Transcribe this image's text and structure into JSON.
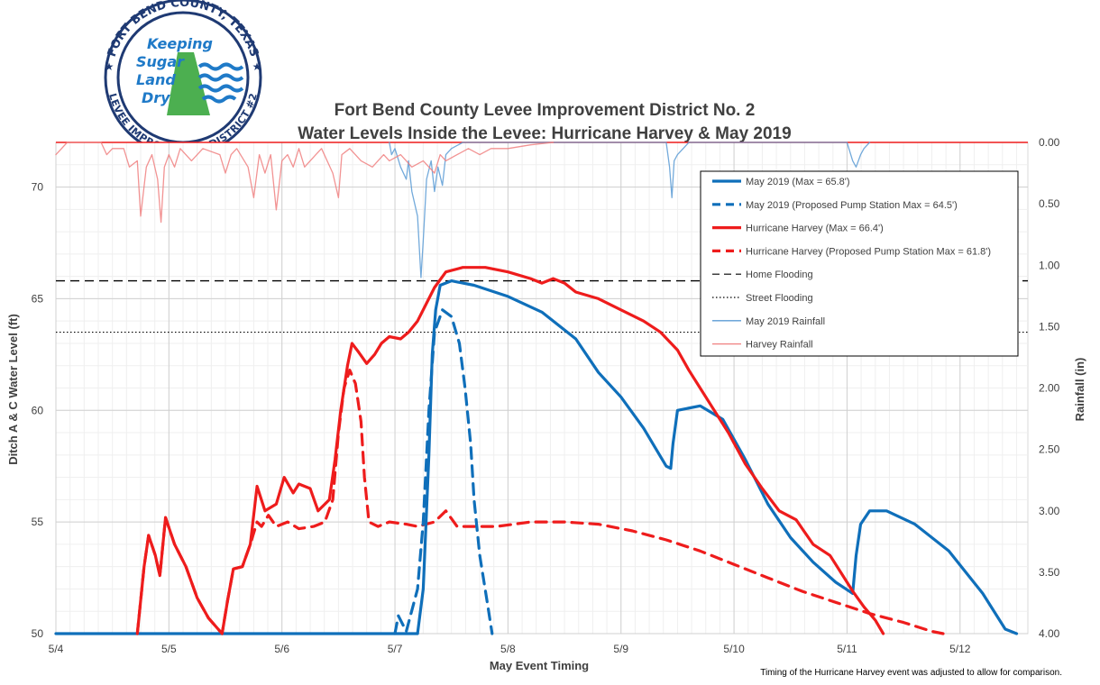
{
  "logo": {
    "ring_text_top": "FORT BEND COUNTY, TEXAS",
    "ring_text_bottom": "LEVEE IMPROVEMENT DISTRICT #2",
    "center_lines": [
      "Keeping",
      "Sugar",
      "Land",
      "Dry"
    ],
    "colors": {
      "ring": "#1f3a73",
      "text": "#1f7ac8",
      "hill": "#4caf50",
      "water": "#1f7ac8"
    }
  },
  "footnote": "Timing of the Hurricane Harvey event was adjusted to allow for comparison.",
  "chart_data": {
    "type": "line",
    "title": [
      "Fort Bend County Levee Improvement District No. 2",
      "Water Levels Inside the Levee: Hurricane Harvey & May 2019"
    ],
    "xlabel": "May Event Timing",
    "ylabel": "Ditch A & C Water Level (ft)",
    "y2label": "Rainfall (in)",
    "x_ticks": [
      "5/4",
      "5/5",
      "5/6",
      "5/7",
      "5/8",
      "5/9",
      "5/10",
      "5/11",
      "5/12"
    ],
    "xlim": [
      4.0,
      12.6
    ],
    "ylim": [
      50,
      72
    ],
    "y_ticks": [
      50,
      55,
      60,
      65,
      70
    ],
    "y2lim": [
      0,
      4
    ],
    "y2_inverted": true,
    "y2_ticks": [
      "0.00",
      "0.50",
      "1.00",
      "1.50",
      "2.00",
      "2.50",
      "3.00",
      "3.50",
      "4.00"
    ],
    "grid": true,
    "legend_position": "top-right",
    "reference_lines": [
      {
        "name": "Home Flooding",
        "y": 65.8,
        "style": "dashed",
        "color": "#000000"
      },
      {
        "name": "Street Flooding",
        "y": 63.5,
        "style": "dotted",
        "color": "#000000"
      }
    ],
    "series": [
      {
        "name": "May 2019 (Max = 65.8')",
        "color": "#0f6fba",
        "style": "solid",
        "axis": "y",
        "points": [
          [
            4.0,
            50
          ],
          [
            7.2,
            50
          ],
          [
            7.25,
            52
          ],
          [
            7.3,
            58
          ],
          [
            7.33,
            62.5
          ],
          [
            7.36,
            64.5
          ],
          [
            7.4,
            65.6
          ],
          [
            7.5,
            65.8
          ],
          [
            7.7,
            65.6
          ],
          [
            8.0,
            65.1
          ],
          [
            8.3,
            64.4
          ],
          [
            8.6,
            63.2
          ],
          [
            8.8,
            61.7
          ],
          [
            9.0,
            60.6
          ],
          [
            9.2,
            59.2
          ],
          [
            9.4,
            57.5
          ],
          [
            9.44,
            57.4
          ],
          [
            9.46,
            58.5
          ],
          [
            9.5,
            60.0
          ],
          [
            9.7,
            60.2
          ],
          [
            9.9,
            59.6
          ],
          [
            10.1,
            57.8
          ],
          [
            10.3,
            55.8
          ],
          [
            10.5,
            54.3
          ],
          [
            10.7,
            53.2
          ],
          [
            10.9,
            52.3
          ],
          [
            11.05,
            51.8
          ],
          [
            11.08,
            53.5
          ],
          [
            11.12,
            54.9
          ],
          [
            11.2,
            55.5
          ],
          [
            11.35,
            55.5
          ],
          [
            11.6,
            54.9
          ],
          [
            11.9,
            53.7
          ],
          [
            12.2,
            51.8
          ],
          [
            12.4,
            50.2
          ],
          [
            12.5,
            50
          ]
        ]
      },
      {
        "name": "May 2019 (Proposed Pump Station Max = 64.5')",
        "color": "#0f6fba",
        "style": "dashed",
        "axis": "y",
        "points": [
          [
            7.0,
            50
          ],
          [
            7.03,
            50.8
          ],
          [
            7.1,
            50.1
          ],
          [
            7.2,
            52
          ],
          [
            7.25,
            55
          ],
          [
            7.3,
            60
          ],
          [
            7.35,
            63.5
          ],
          [
            7.42,
            64.5
          ],
          [
            7.5,
            64.2
          ],
          [
            7.57,
            63
          ],
          [
            7.62,
            61
          ],
          [
            7.67,
            58.5
          ],
          [
            7.7,
            56
          ],
          [
            7.75,
            53.5
          ],
          [
            7.82,
            51.3
          ],
          [
            7.86,
            50
          ]
        ]
      },
      {
        "name": "Hurricane Harvey (Max = 66.4')",
        "color": "#ee1c1c",
        "style": "solid",
        "axis": "y",
        "points": [
          [
            4.72,
            50
          ],
          [
            4.78,
            53
          ],
          [
            4.82,
            54.4
          ],
          [
            4.88,
            53.5
          ],
          [
            4.92,
            52.6
          ],
          [
            4.97,
            55.2
          ],
          [
            5.05,
            54.0
          ],
          [
            5.15,
            53.0
          ],
          [
            5.25,
            51.6
          ],
          [
            5.35,
            50.7
          ],
          [
            5.47,
            50
          ],
          [
            5.52,
            51.5
          ],
          [
            5.57,
            52.9
          ],
          [
            5.65,
            53.0
          ],
          [
            5.72,
            54.0
          ],
          [
            5.78,
            56.6
          ],
          [
            5.85,
            55.5
          ],
          [
            5.95,
            55.8
          ],
          [
            6.02,
            57.0
          ],
          [
            6.1,
            56.3
          ],
          [
            6.15,
            56.7
          ],
          [
            6.25,
            56.5
          ],
          [
            6.32,
            55.5
          ],
          [
            6.42,
            56.0
          ],
          [
            6.47,
            57.8
          ],
          [
            6.52,
            60.0
          ],
          [
            6.58,
            62.0
          ],
          [
            6.62,
            63.0
          ],
          [
            6.68,
            62.6
          ],
          [
            6.75,
            62.1
          ],
          [
            6.82,
            62.5
          ],
          [
            6.88,
            63.0
          ],
          [
            6.95,
            63.3
          ],
          [
            7.05,
            63.2
          ],
          [
            7.12,
            63.5
          ],
          [
            7.2,
            64.0
          ],
          [
            7.28,
            64.8
          ],
          [
            7.35,
            65.5
          ],
          [
            7.45,
            66.2
          ],
          [
            7.6,
            66.4
          ],
          [
            7.8,
            66.4
          ],
          [
            8.0,
            66.2
          ],
          [
            8.2,
            65.9
          ],
          [
            8.3,
            65.7
          ],
          [
            8.4,
            65.9
          ],
          [
            8.5,
            65.7
          ],
          [
            8.6,
            65.3
          ],
          [
            8.8,
            65.0
          ],
          [
            9.0,
            64.5
          ],
          [
            9.2,
            64.0
          ],
          [
            9.35,
            63.5
          ],
          [
            9.5,
            62.7
          ],
          [
            9.6,
            61.8
          ],
          [
            9.7,
            61.0
          ],
          [
            9.8,
            60.2
          ],
          [
            9.95,
            59.0
          ],
          [
            10.1,
            57.6
          ],
          [
            10.25,
            56.5
          ],
          [
            10.4,
            55.5
          ],
          [
            10.55,
            55.1
          ],
          [
            10.7,
            54.0
          ],
          [
            10.85,
            53.5
          ],
          [
            10.95,
            52.7
          ],
          [
            11.05,
            51.9
          ],
          [
            11.15,
            51.2
          ],
          [
            11.25,
            50.6
          ],
          [
            11.32,
            50
          ]
        ]
      },
      {
        "name": "Hurricane Harvey (Proposed Pump Station Max = 61.8')",
        "color": "#ee1c1c",
        "style": "dashed",
        "axis": "y",
        "points": [
          [
            4.72,
            50
          ],
          [
            4.78,
            53
          ],
          [
            4.82,
            54.4
          ],
          [
            4.88,
            53.5
          ],
          [
            4.92,
            52.6
          ],
          [
            4.97,
            55.2
          ],
          [
            5.05,
            54.0
          ],
          [
            5.15,
            53.0
          ],
          [
            5.25,
            51.6
          ],
          [
            5.35,
            50.7
          ],
          [
            5.47,
            50
          ],
          [
            5.52,
            51.5
          ],
          [
            5.57,
            52.9
          ],
          [
            5.65,
            53.0
          ],
          [
            5.72,
            54.0
          ],
          [
            5.78,
            55.0
          ],
          [
            5.82,
            54.8
          ],
          [
            5.88,
            55.3
          ],
          [
            5.95,
            54.8
          ],
          [
            6.05,
            55.0
          ],
          [
            6.15,
            54.7
          ],
          [
            6.28,
            54.8
          ],
          [
            6.38,
            55.0
          ],
          [
            6.45,
            56.0
          ],
          [
            6.5,
            59
          ],
          [
            6.55,
            61.0
          ],
          [
            6.6,
            61.8
          ],
          [
            6.65,
            61.2
          ],
          [
            6.7,
            59.5
          ],
          [
            6.73,
            57
          ],
          [
            6.77,
            55.0
          ],
          [
            6.85,
            54.8
          ],
          [
            6.95,
            55.0
          ],
          [
            7.1,
            54.9
          ],
          [
            7.2,
            54.8
          ],
          [
            7.35,
            55.0
          ],
          [
            7.45,
            55.5
          ],
          [
            7.55,
            54.8
          ],
          [
            7.7,
            54.8
          ],
          [
            7.9,
            54.8
          ],
          [
            8.2,
            55.0
          ],
          [
            8.5,
            55.0
          ],
          [
            8.8,
            54.9
          ],
          [
            9.1,
            54.6
          ],
          [
            9.4,
            54.2
          ],
          [
            9.7,
            53.7
          ],
          [
            10.0,
            53.1
          ],
          [
            10.3,
            52.5
          ],
          [
            10.6,
            51.9
          ],
          [
            10.9,
            51.4
          ],
          [
            11.2,
            50.9
          ],
          [
            11.5,
            50.5
          ],
          [
            11.75,
            50.1
          ],
          [
            11.85,
            50
          ]
        ]
      },
      {
        "name": "Home Flooding",
        "color": "#000000",
        "style": "dashed",
        "axis": "y",
        "points": [
          [
            4.0,
            65.8
          ],
          [
            12.6,
            65.8
          ]
        ]
      },
      {
        "name": "Street Flooding",
        "color": "#000000",
        "style": "dotted",
        "axis": "y",
        "points": [
          [
            4.0,
            63.5
          ],
          [
            12.6,
            63.5
          ]
        ]
      },
      {
        "name": "May 2019 Rainfall",
        "color": "#5b9bd5",
        "style": "solid-thin",
        "axis": "y2",
        "points": [
          [
            6.95,
            0
          ],
          [
            6.97,
            0.1
          ],
          [
            7.0,
            0.05
          ],
          [
            7.05,
            0.2
          ],
          [
            7.1,
            0.3
          ],
          [
            7.12,
            0.15
          ],
          [
            7.15,
            0.4
          ],
          [
            7.2,
            0.6
          ],
          [
            7.23,
            1.1
          ],
          [
            7.25,
            0.8
          ],
          [
            7.28,
            0.3
          ],
          [
            7.32,
            0.15
          ],
          [
            7.35,
            0.4
          ],
          [
            7.38,
            0.2
          ],
          [
            7.42,
            0.35
          ],
          [
            7.45,
            0.1
          ],
          [
            7.5,
            0.05
          ],
          [
            7.6,
            0
          ],
          [
            9.4,
            0
          ],
          [
            9.43,
            0.2
          ],
          [
            9.45,
            0.45
          ],
          [
            9.47,
            0.15
          ],
          [
            9.5,
            0.1
          ],
          [
            9.55,
            0.05
          ],
          [
            9.6,
            0
          ],
          [
            11.0,
            0
          ],
          [
            11.05,
            0.15
          ],
          [
            11.08,
            0.2
          ],
          [
            11.12,
            0.1
          ],
          [
            11.15,
            0.05
          ],
          [
            11.2,
            0
          ]
        ]
      },
      {
        "name": "Harvey Rainfall",
        "color": "#f08080",
        "style": "solid-thin",
        "axis": "y2",
        "points": [
          [
            4.0,
            0.1
          ],
          [
            4.05,
            0.05
          ],
          [
            4.1,
            0
          ],
          [
            4.4,
            0
          ],
          [
            4.45,
            0.1
          ],
          [
            4.5,
            0.05
          ],
          [
            4.6,
            0.05
          ],
          [
            4.65,
            0.2
          ],
          [
            4.72,
            0.15
          ],
          [
            4.75,
            0.6
          ],
          [
            4.8,
            0.2
          ],
          [
            4.85,
            0.1
          ],
          [
            4.9,
            0.3
          ],
          [
            4.93,
            0.65
          ],
          [
            4.96,
            0.2
          ],
          [
            5.0,
            0.1
          ],
          [
            5.05,
            0.2
          ],
          [
            5.1,
            0.05
          ],
          [
            5.2,
            0.15
          ],
          [
            5.3,
            0.05
          ],
          [
            5.45,
            0.1
          ],
          [
            5.5,
            0.25
          ],
          [
            5.55,
            0.1
          ],
          [
            5.6,
            0.05
          ],
          [
            5.7,
            0.2
          ],
          [
            5.75,
            0.45
          ],
          [
            5.8,
            0.1
          ],
          [
            5.85,
            0.25
          ],
          [
            5.9,
            0.1
          ],
          [
            5.95,
            0.55
          ],
          [
            6.0,
            0.15
          ],
          [
            6.05,
            0.1
          ],
          [
            6.1,
            0.2
          ],
          [
            6.15,
            0.05
          ],
          [
            6.2,
            0.2
          ],
          [
            6.3,
            0.1
          ],
          [
            6.35,
            0.05
          ],
          [
            6.45,
            0.25
          ],
          [
            6.5,
            0.45
          ],
          [
            6.53,
            0.1
          ],
          [
            6.6,
            0.05
          ],
          [
            6.7,
            0.15
          ],
          [
            6.8,
            0.2
          ],
          [
            6.9,
            0.1
          ],
          [
            6.95,
            0.15
          ],
          [
            7.05,
            0.1
          ],
          [
            7.15,
            0.2
          ],
          [
            7.25,
            0.15
          ],
          [
            7.35,
            0.25
          ],
          [
            7.4,
            0.1
          ],
          [
            7.45,
            0.15
          ],
          [
            7.55,
            0.1
          ],
          [
            7.65,
            0.05
          ],
          [
            7.75,
            0.1
          ],
          [
            7.85,
            0.05
          ],
          [
            8.0,
            0.05
          ],
          [
            8.2,
            0.02
          ],
          [
            8.4,
            0
          ]
        ]
      }
    ]
  }
}
